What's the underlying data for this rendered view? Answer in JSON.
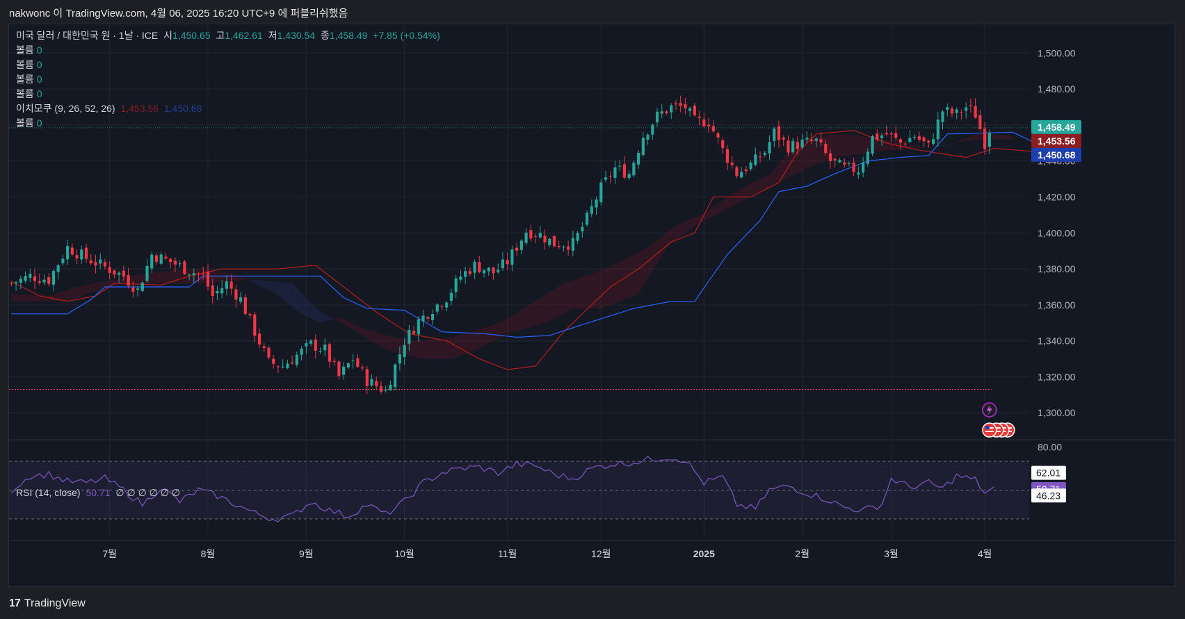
{
  "header": {
    "attribution": "nakwonc 이 TradingView.com, 4월 06, 2025 16:20 UTC+9 에 퍼블리쉬했음"
  },
  "legend": {
    "symbol": "미국 달러 / 대한민국 원 · 1날 · ICE",
    "open_label": "시",
    "open": "1,450.65",
    "high_label": "고",
    "high": "1,462.61",
    "low_label": "저",
    "low": "1,430.54",
    "close_label": "종",
    "close": "1,458.49",
    "change": "+7.85 (+0.54%)",
    "volume_rows": [
      {
        "label": "볼륨",
        "value": "0"
      },
      {
        "label": "볼륨",
        "value": "0"
      },
      {
        "label": "볼륨",
        "value": "0"
      },
      {
        "label": "볼륨",
        "value": "0"
      }
    ],
    "ichimoku_label": "이치모쿠 (9, 26, 52, 26)",
    "ichimoku_v1": "1,453.56",
    "ichimoku_v2": "1,450.68",
    "volume_last": {
      "label": "볼륨",
      "value": "0"
    },
    "rsi_label": "RSI (14, close)",
    "rsi_value": "50.71",
    "rsi_extra": "∅ ∅ ∅ ∅ ∅ ∅"
  },
  "footer": {
    "brand": "TradingView",
    "mark": "17"
  },
  "colors": {
    "up": "#26a69a",
    "down": "#f23645",
    "tenkan": "#2962ff",
    "kijun": "#b71c1c",
    "rsi": "#7e57c2",
    "bg": "#141822"
  },
  "chart_data": [
    {
      "type": "candlestick",
      "title": "미국 달러 / 대한민국 원 · 1날 · ICE",
      "y_ticks": [
        "1,500.00",
        "1,480.00",
        "1,460.00",
        "1,440.00",
        "1,420.00",
        "1,400.00",
        "1,380.00",
        "1,360.00",
        "1,340.00",
        "1,320.00",
        "1,300.00"
      ],
      "y_tick_values": [
        1500,
        1480,
        1460,
        1440,
        1420,
        1400,
        1380,
        1360,
        1340,
        1320,
        1300
      ],
      "ylim": [
        1285,
        1516
      ],
      "x_labels": [
        "7월",
        "8월",
        "9월",
        "10월",
        "11월",
        "12월",
        "2025",
        "2월",
        "3월",
        "4월"
      ],
      "x_label_index": [
        21,
        42,
        63,
        84,
        106,
        126,
        148,
        169,
        188,
        208
      ],
      "price_labels": [
        "1,458.49",
        "1,453.56",
        "1,450.68"
      ],
      "price_label_values": [
        1458.49,
        1453.56,
        1450.68
      ],
      "dashed_line_level": 1313,
      "keypoints": [
        [
          0,
          1372
        ],
        [
          4,
          1376
        ],
        [
          8,
          1374
        ],
        [
          12,
          1392
        ],
        [
          16,
          1386
        ],
        [
          20,
          1381
        ],
        [
          24,
          1376
        ],
        [
          27,
          1368
        ],
        [
          30,
          1388
        ],
        [
          34,
          1384
        ],
        [
          38,
          1379
        ],
        [
          41,
          1376
        ],
        [
          43,
          1365
        ],
        [
          46,
          1372
        ],
        [
          49,
          1363
        ],
        [
          52,
          1345
        ],
        [
          55,
          1328
        ],
        [
          58,
          1326
        ],
        [
          61,
          1332
        ],
        [
          64,
          1338
        ],
        [
          67,
          1335
        ],
        [
          70,
          1320
        ],
        [
          73,
          1330
        ],
        [
          76,
          1318
        ],
        [
          80,
          1312
        ],
        [
          84,
          1340
        ],
        [
          87,
          1351
        ],
        [
          90,
          1358
        ],
        [
          93,
          1364
        ],
        [
          96,
          1376
        ],
        [
          99,
          1382
        ],
        [
          103,
          1378
        ],
        [
          106,
          1384
        ],
        [
          110,
          1401
        ],
        [
          113,
          1399
        ],
        [
          116,
          1394
        ],
        [
          120,
          1394
        ],
        [
          123,
          1408
        ],
        [
          126,
          1425
        ],
        [
          129,
          1436
        ],
        [
          132,
          1433
        ],
        [
          135,
          1454
        ],
        [
          138,
          1465
        ],
        [
          141,
          1470
        ],
        [
          144,
          1470
        ],
        [
          146,
          1462
        ],
        [
          149,
          1462
        ],
        [
          152,
          1446
        ],
        [
          155,
          1433
        ],
        [
          158,
          1438
        ],
        [
          161,
          1445
        ],
        [
          163,
          1456
        ],
        [
          166,
          1448
        ],
        [
          169,
          1450
        ],
        [
          172,
          1451
        ],
        [
          175,
          1440
        ],
        [
          178,
          1436
        ],
        [
          181,
          1435
        ],
        [
          184,
          1453
        ],
        [
          187,
          1455
        ],
        [
          190,
          1450
        ],
        [
          193,
          1454
        ],
        [
          196,
          1448
        ],
        [
          199,
          1468
        ],
        [
          202,
          1466
        ],
        [
          204,
          1470
        ],
        [
          206,
          1466
        ],
        [
          208,
          1450
        ],
        [
          209,
          1458
        ]
      ],
      "tenkan": [
        [
          0,
          1355
        ],
        [
          12,
          1355
        ],
        [
          17,
          1363
        ],
        [
          20,
          1370
        ],
        [
          28,
          1370
        ],
        [
          38,
          1370
        ],
        [
          41,
          1376
        ],
        [
          62,
          1376
        ],
        [
          66,
          1376
        ],
        [
          71,
          1364
        ],
        [
          76,
          1358
        ],
        [
          84,
          1357
        ],
        [
          92,
          1345
        ],
        [
          101,
          1344
        ],
        [
          108,
          1342
        ],
        [
          115,
          1343
        ],
        [
          122,
          1349
        ],
        [
          133,
          1358
        ],
        [
          141,
          1362
        ],
        [
          146,
          1362
        ],
        [
          153,
          1388
        ],
        [
          160,
          1407
        ],
        [
          164,
          1423
        ],
        [
          170,
          1426
        ],
        [
          176,
          1433
        ],
        [
          183,
          1440
        ],
        [
          190,
          1442
        ],
        [
          196,
          1443
        ],
        [
          200,
          1455
        ],
        [
          214,
          1456
        ],
        [
          218,
          1451
        ]
      ],
      "kijun": [
        [
          0,
          1373
        ],
        [
          6,
          1365
        ],
        [
          12,
          1362
        ],
        [
          18,
          1365
        ],
        [
          22,
          1372
        ],
        [
          32,
          1371
        ],
        [
          38,
          1376
        ],
        [
          45,
          1380
        ],
        [
          57,
          1380
        ],
        [
          65,
          1382
        ],
        [
          71,
          1370
        ],
        [
          78,
          1356
        ],
        [
          85,
          1344
        ],
        [
          93,
          1340
        ],
        [
          100,
          1330
        ],
        [
          106,
          1324
        ],
        [
          112,
          1326
        ],
        [
          118,
          1345
        ],
        [
          128,
          1370
        ],
        [
          134,
          1380
        ],
        [
          141,
          1395
        ],
        [
          146,
          1400
        ],
        [
          150,
          1420
        ],
        [
          158,
          1420
        ],
        [
          164,
          1428
        ],
        [
          168,
          1445
        ],
        [
          172,
          1455
        ],
        [
          180,
          1457
        ],
        [
          187,
          1450
        ],
        [
          194,
          1446
        ],
        [
          199,
          1444
        ],
        [
          204,
          1442
        ],
        [
          210,
          1447
        ],
        [
          220,
          1445
        ]
      ],
      "span_a": [
        [
          0,
          1366
        ],
        [
          8,
          1365
        ],
        [
          14,
          1370
        ],
        [
          22,
          1374
        ],
        [
          30,
          1378
        ],
        [
          40,
          1380
        ],
        [
          48,
          1377
        ],
        [
          56,
          1367
        ],
        [
          62,
          1355
        ],
        [
          66,
          1350
        ],
        [
          70,
          1353
        ],
        [
          76,
          1346
        ],
        [
          82,
          1342
        ],
        [
          86,
          1340
        ],
        [
          94,
          1342
        ],
        [
          102,
          1348
        ],
        [
          106,
          1352
        ],
        [
          112,
          1362
        ],
        [
          118,
          1372
        ],
        [
          124,
          1377
        ],
        [
          130,
          1384
        ],
        [
          136,
          1392
        ],
        [
          142,
          1404
        ],
        [
          148,
          1411
        ],
        [
          152,
          1418
        ],
        [
          158,
          1428
        ],
        [
          162,
          1432
        ],
        [
          166,
          1445
        ],
        [
          170,
          1453
        ],
        [
          178,
          1455
        ],
        [
          186,
          1452
        ],
        [
          194,
          1448
        ],
        [
          200,
          1448
        ],
        [
          206,
          1455
        ],
        [
          214,
          1454
        ]
      ],
      "span_b": [
        [
          0,
          1362
        ],
        [
          12,
          1362
        ],
        [
          20,
          1370
        ],
        [
          30,
          1372
        ],
        [
          40,
          1372
        ],
        [
          52,
          1374
        ],
        [
          60,
          1372
        ],
        [
          66,
          1356
        ],
        [
          72,
          1348
        ],
        [
          80,
          1335
        ],
        [
          88,
          1330
        ],
        [
          94,
          1330
        ],
        [
          100,
          1336
        ],
        [
          106,
          1344
        ],
        [
          114,
          1350
        ],
        [
          120,
          1358
        ],
        [
          126,
          1358
        ],
        [
          134,
          1366
        ],
        [
          140,
          1392
        ],
        [
          146,
          1404
        ],
        [
          152,
          1412
        ],
        [
          158,
          1420
        ],
        [
          164,
          1428
        ],
        [
          170,
          1436
        ],
        [
          176,
          1442
        ],
        [
          184,
          1445
        ],
        [
          192,
          1447
        ],
        [
          200,
          1449
        ],
        [
          206,
          1452
        ],
        [
          214,
          1452
        ]
      ]
    },
    {
      "type": "line",
      "title": "RSI (14, close)",
      "y_ticks": [
        "80.00"
      ],
      "band_upper": 70,
      "band_lower": 30,
      "mid": 50,
      "value_labels": [
        "62.01",
        "50.71",
        "46.23"
      ],
      "value_label_values": [
        62.01,
        50.71,
        46.23
      ],
      "ylim": [
        15,
        85
      ],
      "keypoints": [
        [
          0,
          50
        ],
        [
          4,
          60
        ],
        [
          8,
          61
        ],
        [
          12,
          56
        ],
        [
          16,
          55
        ],
        [
          20,
          58
        ],
        [
          24,
          50
        ],
        [
          28,
          40
        ],
        [
          32,
          52
        ],
        [
          36,
          42
        ],
        [
          40,
          50
        ],
        [
          44,
          46
        ],
        [
          48,
          40
        ],
        [
          52,
          34
        ],
        [
          56,
          30
        ],
        [
          60,
          32
        ],
        [
          64,
          42
        ],
        [
          68,
          36
        ],
        [
          72,
          32
        ],
        [
          76,
          40
        ],
        [
          80,
          33
        ],
        [
          84,
          42
        ],
        [
          88,
          55
        ],
        [
          92,
          62
        ],
        [
          96,
          65
        ],
        [
          100,
          66
        ],
        [
          104,
          62
        ],
        [
          108,
          68
        ],
        [
          112,
          67
        ],
        [
          116,
          61
        ],
        [
          120,
          58
        ],
        [
          124,
          65
        ],
        [
          128,
          68
        ],
        [
          132,
          69
        ],
        [
          136,
          71
        ],
        [
          140,
          73
        ],
        [
          144,
          71
        ],
        [
          148,
          55
        ],
        [
          152,
          59
        ],
        [
          155,
          40
        ],
        [
          159,
          37
        ],
        [
          162,
          50
        ],
        [
          166,
          53
        ],
        [
          170,
          48
        ],
        [
          174,
          44
        ],
        [
          178,
          38
        ],
        [
          182,
          36
        ],
        [
          186,
          40
        ],
        [
          188,
          58
        ],
        [
          192,
          52
        ],
        [
          196,
          55
        ],
        [
          199,
          51
        ],
        [
          202,
          60
        ],
        [
          206,
          57
        ],
        [
          208,
          48
        ],
        [
          210,
          51
        ]
      ]
    }
  ]
}
